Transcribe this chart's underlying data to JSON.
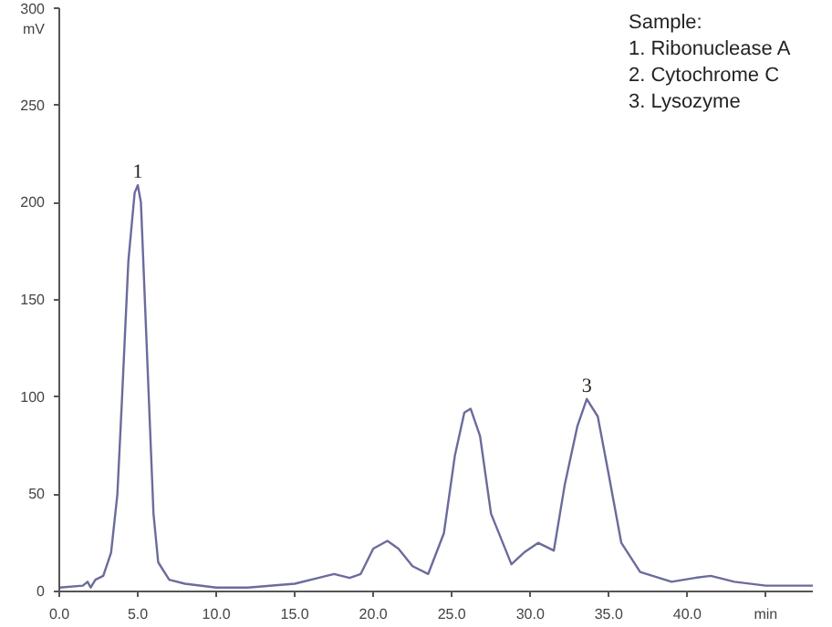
{
  "chart_data": {
    "type": "line",
    "ylabel": "mV",
    "x": [
      0,
      1.5,
      1.8,
      2.0,
      2.3,
      2.8,
      3.3,
      3.7,
      4.0,
      4.4,
      4.8,
      5.0,
      5.2,
      5.6,
      6.0,
      6.3,
      7.0,
      8,
      10,
      12,
      15,
      16.5,
      17.5,
      18.5,
      19.2,
      20,
      20.9,
      21.6,
      22.5,
      23.5,
      24.5,
      25.2,
      25.8,
      26.2,
      26.8,
      27.5,
      28.8,
      29.6,
      30.5,
      31.5,
      32.2,
      33.0,
      33.6,
      34.3,
      35.0,
      35.8,
      37,
      39,
      40.5,
      41.5,
      43,
      45,
      48
    ],
    "series": [
      {
        "color": "#6b6b9c",
        "values": [
          2,
          3,
          5,
          2,
          6,
          8,
          20,
          50,
          100,
          170,
          205,
          209,
          200,
          120,
          40,
          15,
          6,
          4,
          2,
          2,
          4,
          7,
          9,
          7,
          9,
          22,
          26,
          22,
          13,
          9,
          30,
          70,
          92,
          94,
          80,
          40,
          14,
          20,
          25,
          21,
          55,
          85,
          99,
          90,
          60,
          25,
          10,
          5,
          7,
          8,
          5,
          3,
          3
        ]
      }
    ],
    "xlim": [
      0,
      48
    ],
    "ylim": [
      0,
      300
    ],
    "xticks": [
      {
        "value": 0,
        "label": "0.0"
      },
      {
        "value": 5,
        "label": "5.0"
      },
      {
        "value": 10,
        "label": "10.0"
      },
      {
        "value": 15,
        "label": "15.0"
      },
      {
        "value": 20,
        "label": "20.0"
      },
      {
        "value": 25,
        "label": "25.0"
      },
      {
        "value": 30,
        "label": "30.0"
      },
      {
        "value": 35,
        "label": "35.0"
      },
      {
        "value": 40,
        "label": "40.0"
      },
      {
        "value": 45,
        "label": "min"
      }
    ],
    "yticks": [
      0,
      50,
      100,
      150,
      200,
      250,
      300
    ],
    "annotations": [
      {
        "text": "1",
        "x": 5.0,
        "y": 209
      },
      {
        "text": "3",
        "x": 33.6,
        "y": 99
      },
      "Sample:",
      "1. Ribonuclease A",
      "2. Cytochrome C",
      "3. Lysozyme"
    ],
    "grid": false,
    "line_style": "solid",
    "marker": "none"
  }
}
